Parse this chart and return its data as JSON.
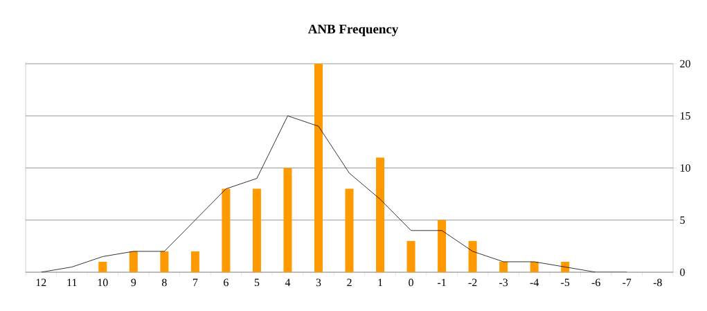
{
  "chart_data": {
    "type": "bar",
    "title": "ANB Frequency",
    "categories": [
      "12",
      "11",
      "10",
      "9",
      "8",
      "7",
      "6",
      "5",
      "4",
      "3",
      "2",
      "1",
      "0",
      "-1",
      "-2",
      "-3",
      "-4",
      "-5",
      "-6",
      "-7",
      "-8"
    ],
    "series": [
      {
        "color": "#ff9900",
        "values": [
          0,
          0,
          1,
          2,
          2,
          2,
          8,
          8,
          10,
          20,
          8,
          11,
          3,
          5,
          3,
          1,
          1,
          1,
          0,
          0,
          0
        ]
      },
      {
        "type": "line",
        "color": "#000000",
        "values": [
          0,
          0.5,
          1.5,
          2,
          2,
          5,
          8,
          9,
          15,
          14,
          9.5,
          7,
          4,
          4,
          2,
          1,
          1,
          0.5,
          0,
          0,
          null
        ]
      }
    ],
    "ylim": [
      0,
      20
    ],
    "yticks": [
      0,
      5,
      10,
      15,
      20
    ],
    "grid": "y"
  }
}
